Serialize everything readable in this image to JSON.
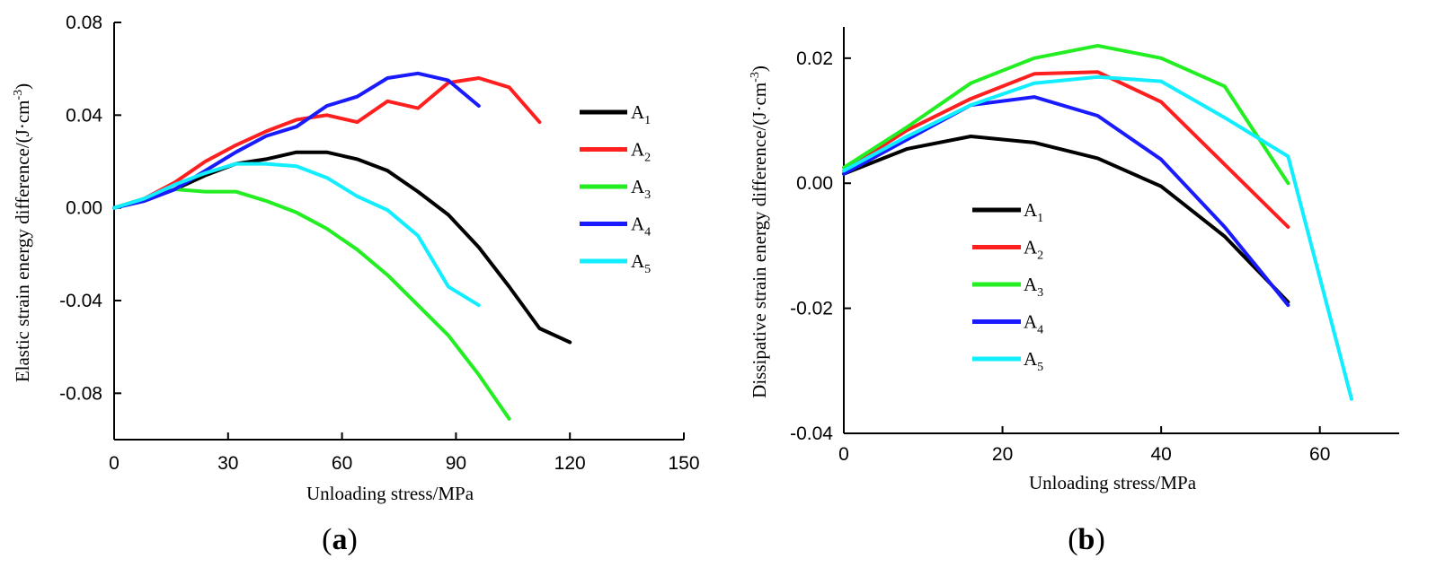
{
  "chart_data": [
    {
      "type": "line",
      "panel_label": "(a)",
      "xlabel": "Unloading stress/MPa",
      "ylabel": "Elastic strain energy difference/(J·cm⁻³)",
      "xlim": [
        0,
        150
      ],
      "ylim": [
        -0.1,
        0.08
      ],
      "xticks": [
        0,
        30,
        60,
        90,
        120,
        150
      ],
      "yticks": [
        -0.08,
        -0.04,
        0.0,
        0.04,
        0.08
      ],
      "xtick_labels": [
        "0",
        "30",
        "60",
        "90",
        "120",
        "150"
      ],
      "ytick_labels": [
        "-0.08",
        "-0.04",
        "0.00",
        "0.04",
        "0.08"
      ],
      "legend_position": "right",
      "grid": false,
      "series": [
        {
          "name": "A1",
          "color": "#000000",
          "x": [
            0,
            8,
            16,
            24,
            32,
            40,
            48,
            56,
            64,
            72,
            80,
            88,
            96,
            104,
            112,
            120
          ],
          "y": [
            0.0,
            0.003,
            0.008,
            0.014,
            0.019,
            0.021,
            0.024,
            0.024,
            0.021,
            0.016,
            0.007,
            -0.003,
            -0.017,
            -0.034,
            -0.052,
            -0.058
          ]
        },
        {
          "name": "A2",
          "color": "#ff1f1f",
          "x": [
            0,
            8,
            16,
            24,
            32,
            40,
            48,
            56,
            64,
            72,
            80,
            88,
            96,
            104,
            112
          ],
          "y": [
            0.0,
            0.004,
            0.011,
            0.02,
            0.027,
            0.033,
            0.038,
            0.04,
            0.037,
            0.046,
            0.043,
            0.054,
            0.056,
            0.052,
            0.037
          ]
        },
        {
          "name": "A3",
          "color": "#22ee22",
          "x": [
            0,
            8,
            16,
            24,
            32,
            40,
            48,
            56,
            64,
            72,
            80,
            88,
            96,
            104
          ],
          "y": [
            0.0,
            0.004,
            0.008,
            0.007,
            0.007,
            0.003,
            -0.002,
            -0.009,
            -0.018,
            -0.029,
            -0.042,
            -0.055,
            -0.072,
            -0.091
          ]
        },
        {
          "name": "A4",
          "color": "#1a1aff",
          "x": [
            0,
            8,
            16,
            24,
            32,
            40,
            48,
            56,
            64,
            72,
            80,
            88,
            96
          ],
          "y": [
            0.0,
            0.003,
            0.008,
            0.016,
            0.024,
            0.031,
            0.035,
            0.044,
            0.048,
            0.056,
            0.058,
            0.055,
            0.044
          ]
        },
        {
          "name": "A5",
          "color": "#11eeff",
          "x": [
            0,
            8,
            16,
            24,
            32,
            40,
            48,
            56,
            64,
            72,
            80,
            88,
            96
          ],
          "y": [
            0.0,
            0.004,
            0.01,
            0.015,
            0.019,
            0.019,
            0.018,
            0.013,
            0.005,
            -0.001,
            -0.012,
            -0.034,
            -0.042
          ]
        }
      ]
    },
    {
      "type": "line",
      "panel_label": "(b)",
      "xlabel": "Unloading stress/MPa",
      "ylabel": "Dissipative strain energy difference/(J·cm⁻³)",
      "xlim": [
        0,
        70
      ],
      "ylim": [
        -0.04,
        0.025
      ],
      "xticks": [
        0,
        20,
        40,
        60
      ],
      "yticks": [
        -0.04,
        -0.02,
        0.0,
        0.02
      ],
      "xtick_labels": [
        "0",
        "20",
        "40",
        "60"
      ],
      "ytick_labels": [
        "-0.04",
        "-0.02",
        "0.00",
        "0.02"
      ],
      "legend_position": "lower-left",
      "grid": false,
      "series": [
        {
          "name": "A1",
          "color": "#000000",
          "x": [
            0,
            8,
            16,
            24,
            32,
            40,
            48,
            56
          ],
          "y": [
            0.0015,
            0.0055,
            0.0075,
            0.0065,
            0.004,
            -0.0005,
            -0.0085,
            -0.019
          ]
        },
        {
          "name": "A2",
          "color": "#ff1f1f",
          "x": [
            0,
            8,
            16,
            24,
            32,
            40,
            48,
            56
          ],
          "y": [
            0.002,
            0.0085,
            0.0135,
            0.0175,
            0.0178,
            0.013,
            0.003,
            -0.007
          ]
        },
        {
          "name": "A3",
          "color": "#22ee22",
          "x": [
            0,
            8,
            16,
            24,
            32,
            40,
            48,
            56
          ],
          "y": [
            0.0025,
            0.009,
            0.016,
            0.02,
            0.022,
            0.02,
            0.0155,
            0.0
          ]
        },
        {
          "name": "A4",
          "color": "#1a1aff",
          "x": [
            0,
            8,
            16,
            24,
            32,
            40,
            48,
            56
          ],
          "y": [
            0.0015,
            0.007,
            0.0125,
            0.0138,
            0.0108,
            0.0038,
            -0.007,
            -0.0195
          ]
        },
        {
          "name": "A5",
          "color": "#11eeff",
          "x": [
            0,
            8,
            16,
            24,
            32,
            40,
            48,
            56,
            64
          ],
          "y": [
            0.002,
            0.0075,
            0.0125,
            0.016,
            0.017,
            0.0163,
            0.0105,
            0.0043,
            -0.0345
          ]
        }
      ]
    }
  ]
}
